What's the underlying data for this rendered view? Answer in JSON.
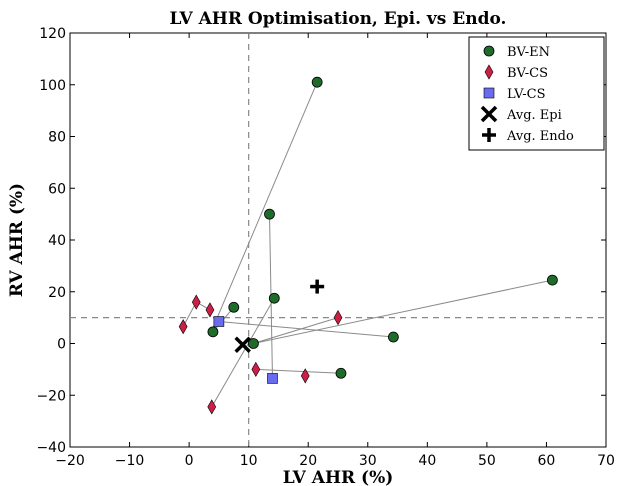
{
  "chart_data": {
    "type": "scatter",
    "title": "LV AHR Optimisation, Epi. vs Endo.",
    "xlabel": "LV AHR (%)",
    "ylabel": "RV AHR (%)",
    "xlim": [
      -20,
      70
    ],
    "ylim": [
      -40,
      120
    ],
    "xticks": [
      -20,
      -10,
      0,
      10,
      20,
      30,
      40,
      50,
      60,
      70
    ],
    "yticks": [
      -40,
      -20,
      0,
      20,
      40,
      60,
      80,
      100,
      120
    ],
    "xtick_labels": [
      "−20",
      "−10",
      "0",
      "10",
      "20",
      "30",
      "40",
      "50",
      "60",
      "70"
    ],
    "ytick_labels": [
      "−40",
      "−20",
      "0",
      "20",
      "40",
      "60",
      "80",
      "100",
      "120"
    ],
    "reference_lines": {
      "x": 10,
      "y": 10
    },
    "legend_position": "top-right",
    "grid": false,
    "series": [
      {
        "name": "BV-EN",
        "marker": "circle",
        "color": "#1e6b2a",
        "points": [
          [
            21.5,
            101
          ],
          [
            13.5,
            50
          ],
          [
            14.3,
            17.5
          ],
          [
            7.5,
            14
          ],
          [
            4,
            4.5
          ],
          [
            10.8,
            0
          ],
          [
            34.3,
            2.5
          ],
          [
            61,
            24.5
          ],
          [
            25.5,
            -11.5
          ]
        ]
      },
      {
        "name": "BV-CS",
        "marker": "diamond",
        "color": "#cc1f45",
        "points": [
          [
            1.2,
            16
          ],
          [
            3.5,
            13
          ],
          [
            -1,
            6.5
          ],
          [
            25,
            10
          ],
          [
            11.2,
            -10
          ],
          [
            19.5,
            -12.5
          ],
          [
            3.8,
            -24.5
          ]
        ]
      },
      {
        "name": "LV-CS",
        "marker": "square",
        "color": "#6a6cf0",
        "points": [
          [
            5,
            8.5
          ],
          [
            14,
            -13.5
          ]
        ]
      },
      {
        "name": "Avg. Epi",
        "marker": "x",
        "color": "#000000",
        "points": [
          [
            9,
            -0.5
          ]
        ]
      },
      {
        "name": "Avg. Endo",
        "marker": "plus",
        "color": "#000000",
        "points": [
          [
            21.5,
            22
          ]
        ]
      }
    ],
    "connections": [
      [
        [
          21.5,
          101
        ],
        [
          3.8,
          5
        ]
      ],
      [
        [
          13.5,
          50
        ],
        [
          14,
          -13.5
        ]
      ],
      [
        [
          14.3,
          17.5
        ],
        [
          3.8,
          -24.5
        ]
      ],
      [
        [
          7.5,
          14
        ],
        [
          4,
          4.5
        ]
      ],
      [
        [
          5,
          8.5
        ],
        [
          34.3,
          2.5
        ]
      ],
      [
        [
          10.8,
          0
        ],
        [
          61,
          24.5
        ]
      ],
      [
        [
          11.2,
          -10
        ],
        [
          25.5,
          -11.5
        ]
      ],
      [
        [
          -1,
          6.5
        ],
        [
          1.2,
          16
        ]
      ],
      [
        [
          1.2,
          16
        ],
        [
          3.5,
          13
        ]
      ],
      [
        [
          10.8,
          0
        ],
        [
          25,
          10
        ]
      ]
    ]
  }
}
